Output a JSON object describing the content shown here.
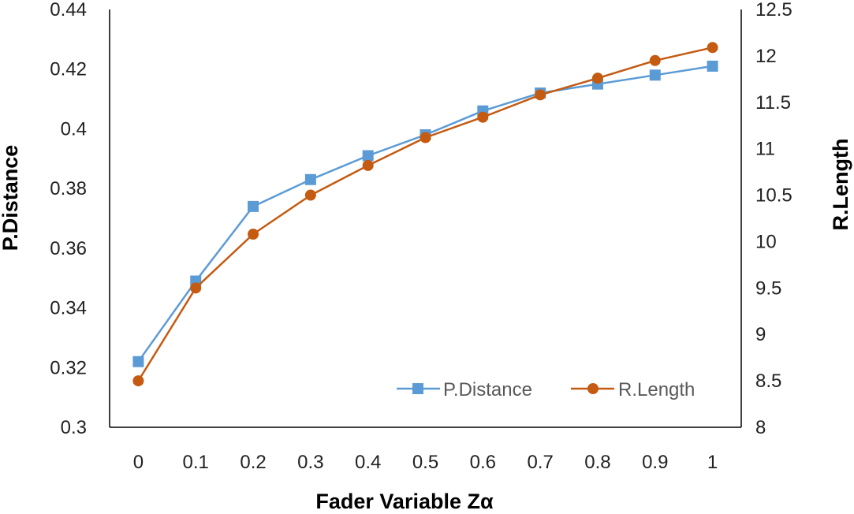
{
  "chart_data": {
    "type": "line",
    "title": "",
    "xlabel": "Fader  Variable Zα",
    "ylabel": "P.Distance",
    "y2label": "R.Length",
    "x": [
      "0",
      "0.1",
      "0.2",
      "0.3",
      "0.4",
      "0.5",
      "0.6",
      "0.7",
      "0.8",
      "0.9",
      "1"
    ],
    "ylim": [
      0.3,
      0.44
    ],
    "y_ticks": [
      "0.3",
      "0.32",
      "0.34",
      "0.36",
      "0.38",
      "0.4",
      "0.42",
      "0.44"
    ],
    "y2lim": [
      8,
      12.5
    ],
    "y2_ticks": [
      "8",
      "8.5",
      "9",
      "9.5",
      "10",
      "10.5",
      "11",
      "11.5",
      "12",
      "12.5"
    ],
    "grid": false,
    "legend_position": "bottom-right",
    "series": [
      {
        "name": "P.Distance",
        "axis": "left",
        "color": "#5B9BD5",
        "marker": "square",
        "values": [
          0.322,
          0.349,
          0.374,
          0.383,
          0.391,
          0.398,
          0.406,
          0.412,
          0.415,
          0.418,
          0.421
        ]
      },
      {
        "name": "R.Length",
        "axis": "right",
        "color": "#C55A11",
        "marker": "circle",
        "values": [
          8.5,
          9.5,
          10.08,
          10.5,
          10.82,
          11.12,
          11.34,
          11.58,
          11.76,
          11.95,
          12.09
        ]
      }
    ]
  }
}
